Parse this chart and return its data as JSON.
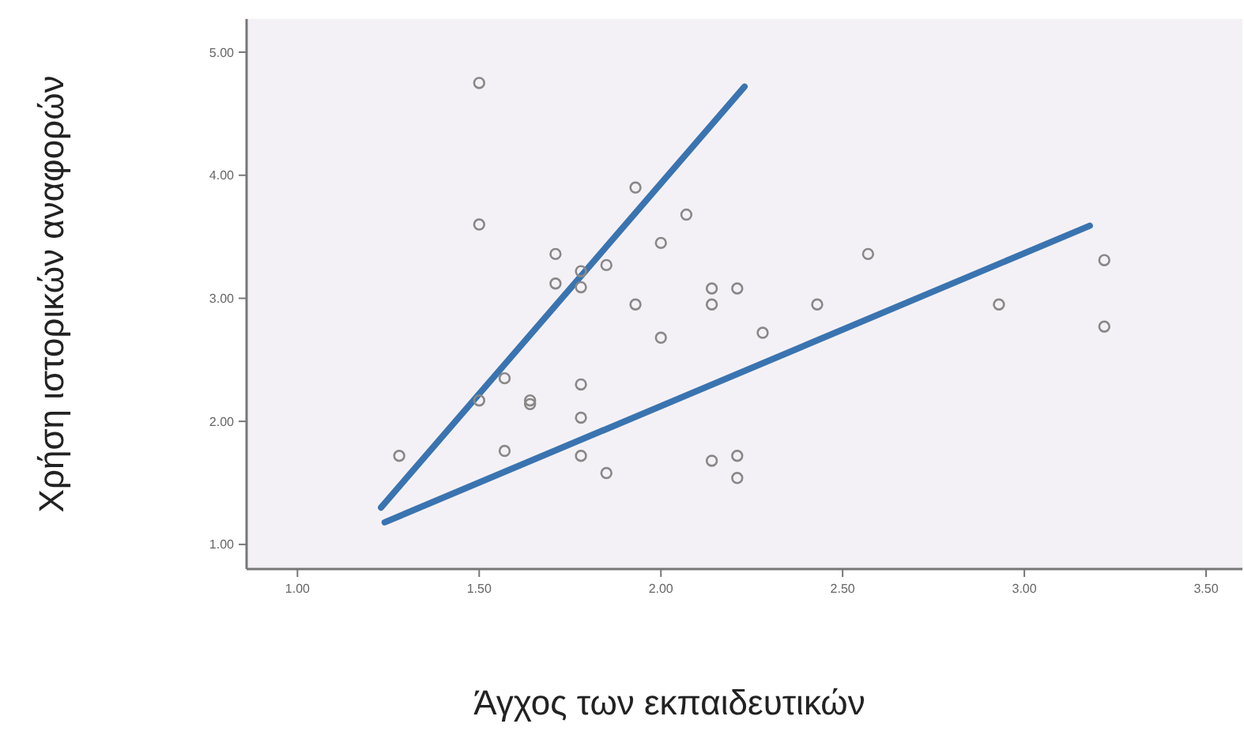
{
  "chart_data": {
    "type": "scatter",
    "xlabel": "Άγχος των εκπαιδευτικών",
    "ylabel": "Χρήση ιστορικών αναφορών",
    "xlim": [
      0.86,
      3.6
    ],
    "ylim": [
      0.8,
      5.27
    ],
    "xticks": [
      {
        "value": 1,
        "label": "1.00"
      },
      {
        "value": 1.5,
        "label": "1.50"
      },
      {
        "value": 2,
        "label": "2.00"
      },
      {
        "value": 2.5,
        "label": "2.50"
      },
      {
        "value": 3,
        "label": "3.00"
      },
      {
        "value": 3.5,
        "label": "3.50"
      }
    ],
    "yticks": [
      {
        "value": 1,
        "label": "1.00"
      },
      {
        "value": 2,
        "label": "2.00"
      },
      {
        "value": 3,
        "label": "3.00"
      },
      {
        "value": 4,
        "label": "4.00"
      },
      {
        "value": 5,
        "label": "5.00"
      }
    ],
    "grid": false,
    "series": [
      {
        "marker": "circle",
        "color": "#888888",
        "x": [
          1.5,
          1.5,
          1.28,
          1.5,
          1.57,
          1.57,
          1.64,
          1.64,
          1.71,
          1.71,
          1.78,
          1.78,
          1.85,
          1.78,
          1.78,
          1.78,
          1.85,
          1.93,
          1.93,
          2.0,
          2.0,
          2.07,
          2.14,
          2.14,
          2.21,
          2.28,
          2.43,
          2.57,
          2.93,
          3.22,
          3.22,
          2.14,
          2.21,
          2.21
        ],
        "values": [
          4.75,
          3.6,
          1.72,
          2.17,
          2.35,
          1.76,
          2.17,
          2.14,
          3.36,
          3.12,
          3.22,
          3.09,
          3.27,
          2.3,
          2.03,
          1.72,
          1.58,
          3.9,
          2.95,
          3.45,
          2.68,
          3.68,
          3.08,
          2.95,
          3.08,
          2.72,
          2.95,
          3.36,
          2.95,
          3.31,
          2.77,
          1.68,
          1.72,
          1.54
        ]
      },
      {
        "type": "line",
        "color": "#3a74b0",
        "x": [
          1.23,
          2.23
        ],
        "values": [
          1.3,
          4.72
        ]
      },
      {
        "type": "line",
        "color": "#3a74b0",
        "x": [
          1.24,
          3.18
        ],
        "values": [
          1.18,
          3.59
        ]
      }
    ]
  }
}
